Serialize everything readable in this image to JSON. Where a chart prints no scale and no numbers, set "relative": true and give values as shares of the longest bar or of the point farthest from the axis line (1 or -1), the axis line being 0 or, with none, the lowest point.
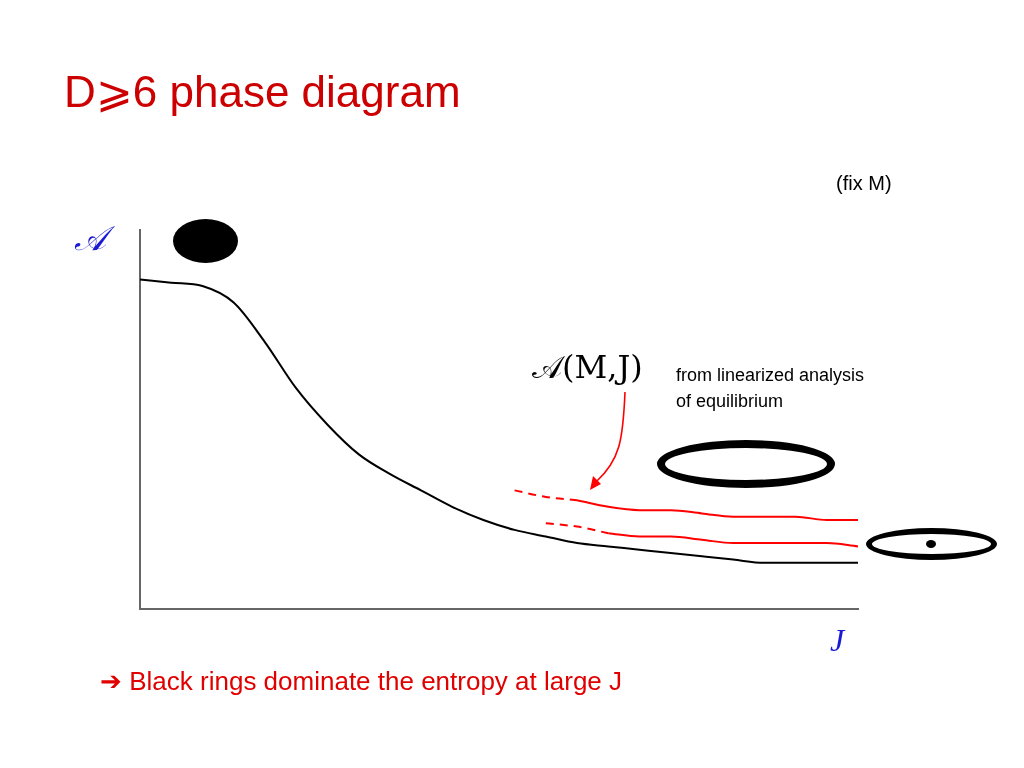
{
  "chart_data": {
    "type": "line",
    "title": "D⩾6 phase diagram",
    "xlabel": "J",
    "ylabel": "𝒜",
    "relative": true,
    "categories": [
      null,
      null,
      null,
      null,
      null,
      null,
      null,
      null,
      null,
      null,
      null,
      null,
      null,
      null,
      null,
      null,
      null,
      null,
      null,
      null,
      null,
      null,
      null,
      null
    ],
    "series": [
      {
        "color": "#000000",
        "values": [
          1.0,
          0.99,
          0.98,
          0.93,
          0.81,
          0.67,
          0.56,
          0.47,
          0.41,
          0.36,
          0.31,
          0.27,
          0.24,
          0.22,
          0.2,
          0.19,
          0.18,
          0.17,
          0.16,
          0.15,
          0.14,
          0.14,
          0.14,
          0.14
        ]
      },
      {
        "color": "#ff0000",
        "line_style": "dashed",
        "values": [
          null,
          null,
          null,
          null,
          null,
          null,
          null,
          null,
          null,
          null,
          null,
          null,
          0.36,
          0.34,
          0.33,
          null,
          null,
          null,
          null,
          null,
          null,
          null,
          null,
          null
        ]
      },
      {
        "color": "#ff0000",
        "values": [
          null,
          null,
          null,
          null,
          null,
          null,
          null,
          null,
          null,
          null,
          null,
          null,
          null,
          null,
          0.33,
          0.31,
          0.3,
          0.3,
          0.29,
          0.28,
          0.28,
          0.28,
          0.27,
          0.27
        ]
      },
      {
        "color": "#ff0000",
        "line_style": "dashed",
        "values": [
          null,
          null,
          null,
          null,
          null,
          null,
          null,
          null,
          null,
          null,
          null,
          null,
          null,
          0.26,
          0.25,
          0.23,
          null,
          null,
          null,
          null,
          null,
          null,
          null,
          null
        ]
      },
      {
        "color": "#ff0000",
        "values": [
          null,
          null,
          null,
          null,
          null,
          null,
          null,
          null,
          null,
          null,
          null,
          null,
          null,
          null,
          null,
          0.23,
          0.22,
          0.22,
          0.21,
          0.2,
          0.2,
          0.2,
          0.2,
          0.19
        ]
      }
    ],
    "annotations": [
      "(fix M)",
      "𝒜(M,J)",
      "from linearized analysis\nof equilibrium",
      "➔ Black rings dominate the entropy at large J"
    ]
  }
}
